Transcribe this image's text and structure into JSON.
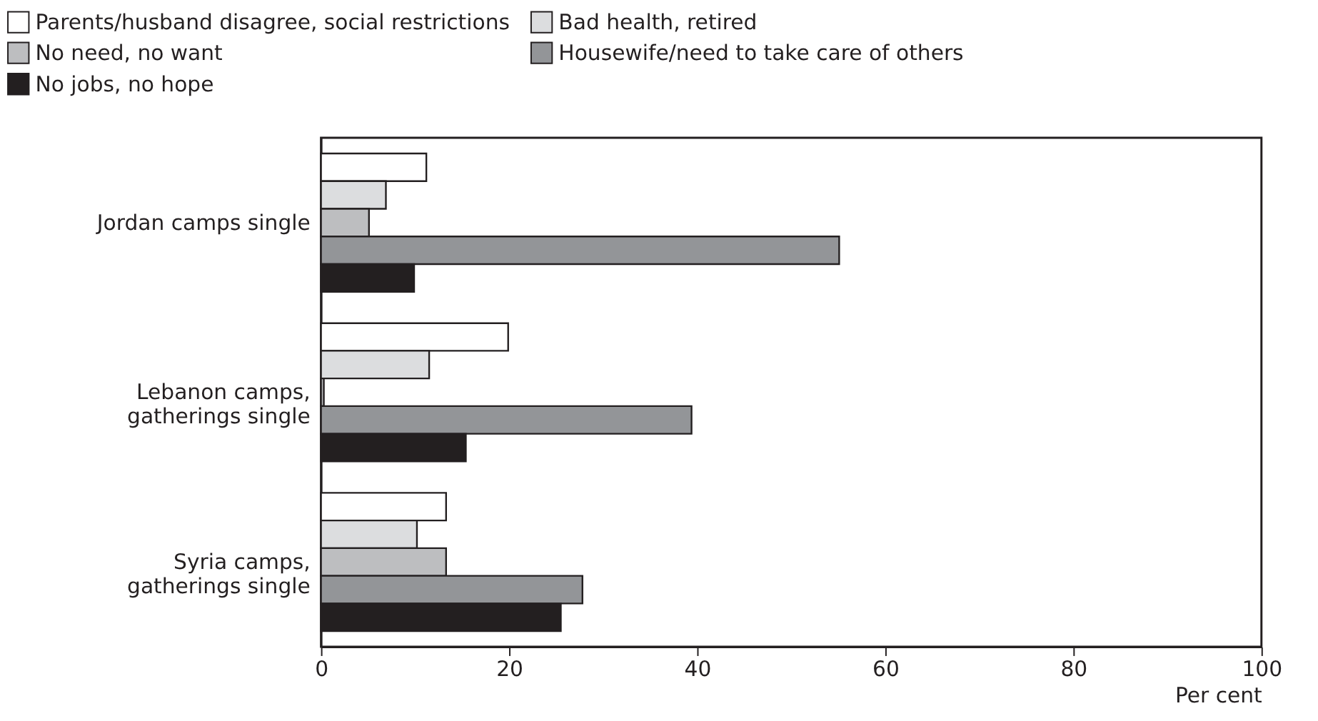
{
  "chart_data": {
    "type": "bar",
    "orientation": "horizontal",
    "xlabel": "Per cent",
    "categories": [
      "Jordan camps single",
      "Lebanon camps,\ngatherings single",
      "Syria camps,\ngatherings single"
    ],
    "series": [
      {
        "name": "Parents/husband disagree, social restrictions",
        "color": "#ffffff",
        "values": [
          11.2,
          19.9,
          13.3
        ]
      },
      {
        "name": "Bad health, retired",
        "color": "#dcdddf",
        "values": [
          6.9,
          11.5,
          10.2
        ]
      },
      {
        "name": "No need, no want",
        "color": "#bdbec0",
        "values": [
          5.1,
          0.3,
          13.3
        ]
      },
      {
        "name": "Housewife/need to take care of others",
        "color": "#939598",
        "values": [
          55.1,
          39.4,
          27.8
        ]
      },
      {
        "name": "No jobs, no hope",
        "color": "#231f20",
        "values": [
          9.9,
          15.4,
          25.5
        ]
      }
    ],
    "xlim": [
      0,
      100
    ],
    "xticks": [
      0,
      20,
      40,
      60,
      80,
      100
    ],
    "grid": false,
    "legend": "top"
  }
}
